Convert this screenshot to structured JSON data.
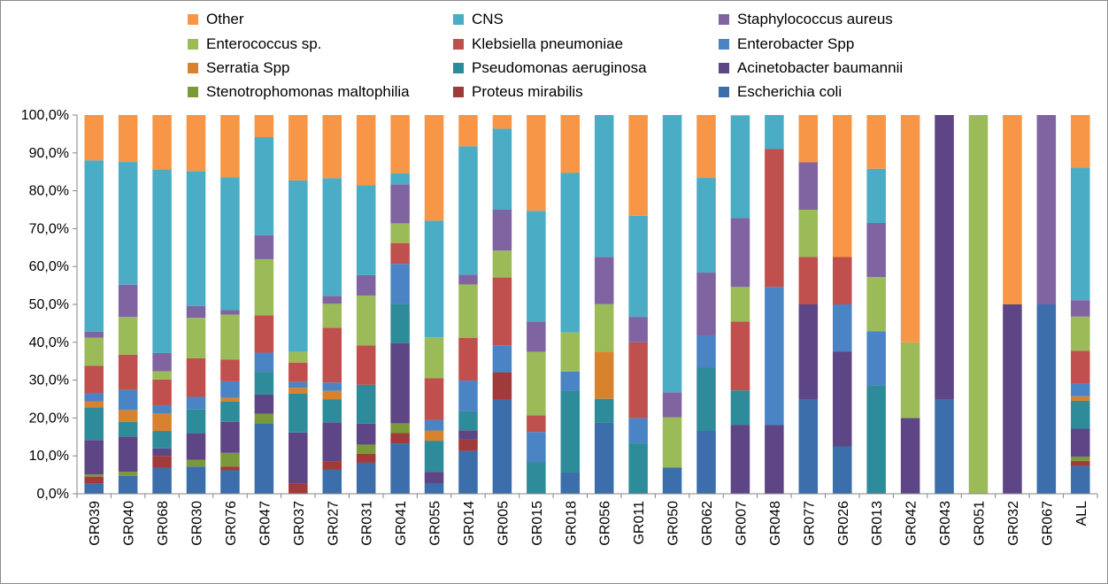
{
  "chart_data": {
    "type": "bar",
    "stacked": true,
    "percent": true,
    "title": "",
    "xlabel": "",
    "ylabel": "",
    "ylim": [
      0,
      100
    ],
    "yticks": [
      "0,0%",
      "10,0%",
      "20,0%",
      "30,0%",
      "40,0%",
      "50,0%",
      "60,0%",
      "70,0%",
      "80,0%",
      "90,0%",
      "100,0%"
    ],
    "grid": false,
    "legend_position": "top",
    "categories": [
      "GR039",
      "GR040",
      "GR068",
      "GR030",
      "GR076",
      "GR047",
      "GR037",
      "GR027",
      "GR031",
      "GR041",
      "GR055",
      "GR014",
      "GR005",
      "GR015",
      "GR018",
      "GR056",
      "GR011",
      "GR050",
      "GR062",
      "GR007",
      "GR048",
      "GR077",
      "GR026",
      "GR013",
      "GR042",
      "GR043",
      "GR051",
      "GR032",
      "GR067",
      "ALL"
    ],
    "series": [
      {
        "name": "Escherichia coli",
        "color": "#3B6EAA",
        "values": [
          2.7,
          4.7,
          6.8,
          7.2,
          6.2,
          18.5,
          0,
          6.3,
          8.2,
          13.3,
          2.8,
          11.8,
          25,
          0,
          5.6,
          18.8,
          0,
          6.9,
          16.7,
          0,
          0,
          25,
          12.5,
          0,
          0,
          25,
          0,
          0,
          50,
          7.3
        ]
      },
      {
        "name": "Proteus mirabilis",
        "color": "#A13A3A",
        "values": [
          1.8,
          0,
          3.2,
          0,
          1,
          0,
          2.7,
          2.3,
          2.4,
          2.7,
          0,
          3.1,
          7.1,
          0,
          0,
          0,
          0,
          0,
          0,
          0,
          0,
          0,
          0,
          0,
          0,
          0,
          0,
          0,
          0,
          1.3
        ]
      },
      {
        "name": "Stenotrophomonas maltophilia",
        "color": "#7A9A3A",
        "values": [
          0.6,
          1.1,
          0,
          1.8,
          3.6,
          2.5,
          0,
          0,
          2.4,
          2.6,
          0,
          0,
          0,
          0,
          0,
          0,
          0,
          0,
          0,
          0,
          0,
          0,
          0,
          0,
          0,
          0,
          0,
          0,
          0,
          1.1
        ]
      },
      {
        "name": "Acinetobacter baumannii",
        "color": "#5E4585",
        "values": [
          9,
          9.3,
          2,
          7,
          8.2,
          5,
          13.4,
          10.2,
          5.5,
          21.2,
          3,
          2.6,
          0,
          0,
          0,
          0,
          0,
          0,
          0,
          18.2,
          18.2,
          25,
          25,
          0,
          20,
          75,
          0,
          50,
          0,
          7.3
        ]
      },
      {
        "name": "Pseudomonas aeruginosa",
        "color": "#2E8C9A",
        "values": [
          8.6,
          3.9,
          4.6,
          6.3,
          5.3,
          6,
          10.2,
          6.1,
          10.3,
          10.3,
          8.2,
          5.2,
          0,
          8.4,
          21.6,
          6.3,
          13.3,
          0,
          16.7,
          9.1,
          0,
          0,
          0,
          28.6,
          0,
          0,
          0,
          0,
          0,
          7.3
        ]
      },
      {
        "name": "Serratia Spp",
        "color": "#D8822E",
        "values": [
          1.6,
          3.1,
          4.6,
          0,
          1,
          0,
          1.6,
          2.2,
          0,
          0,
          2.7,
          0,
          0,
          0,
          0,
          12.5,
          0,
          0,
          0,
          0,
          0,
          0,
          0,
          0,
          0,
          0,
          0,
          0,
          0,
          1.2
        ]
      },
      {
        "name": "Enterobacter Spp",
        "color": "#4A84C4",
        "values": [
          2.2,
          5.3,
          2.2,
          3.3,
          4.4,
          5,
          1.5,
          2.2,
          0,
          10.6,
          2.8,
          8.5,
          7.1,
          7.9,
          5.1,
          0,
          6.7,
          0,
          8.3,
          0,
          36.4,
          0,
          12.5,
          14.3,
          0,
          0,
          0,
          0,
          0,
          3.4
        ]
      },
      {
        "name": "Klebsiella pneumoniae",
        "color": "#C0504D",
        "values": [
          7.1,
          9.3,
          6.8,
          10.2,
          5.7,
          9.8,
          5.1,
          14.4,
          10.4,
          5.5,
          11,
          11.8,
          17.9,
          4.4,
          0,
          0,
          20,
          0,
          0,
          18.2,
          36.4,
          12.5,
          12.5,
          0,
          0,
          0,
          0,
          0,
          0,
          8.5
        ]
      },
      {
        "name": "Enterococcus sp.",
        "color": "#9BBB59",
        "values": [
          7.4,
          10,
          2.2,
          10.7,
          11.9,
          14.7,
          2.8,
          6.3,
          13.2,
          5.2,
          10.8,
          14.7,
          7.1,
          16.8,
          10.3,
          12.5,
          0,
          13.3,
          0,
          9.1,
          0,
          12.5,
          0,
          14.3,
          20,
          0,
          100,
          0,
          0,
          8.9
        ]
      },
      {
        "name": "Staphylococcus aureus",
        "color": "#8064A2",
        "values": [
          1.6,
          8.5,
          4.8,
          3.1,
          1.2,
          6.3,
          0,
          2.1,
          5.4,
          10.3,
          0,
          2.7,
          10.8,
          8,
          0,
          12.5,
          6.7,
          6.6,
          16.7,
          18.2,
          0,
          12.5,
          0,
          14.3,
          0,
          0,
          0,
          0,
          50,
          4.3
        ]
      },
      {
        "name": "CNS",
        "color": "#4BACC6",
        "values": [
          45,
          32.4,
          48.5,
          35.7,
          35.1,
          25.7,
          45.1,
          31,
          23.7,
          2.9,
          30.8,
          35.4,
          21.4,
          29.2,
          42.1,
          37.5,
          26.7,
          73.2,
          25,
          27,
          9,
          0,
          0,
          14.3,
          0,
          0,
          0,
          0,
          0,
          34.7
        ]
      },
      {
        "name": "Other",
        "color": "#F79646",
        "values": [
          11.9,
          12.4,
          14.4,
          14.8,
          16.4,
          5.8,
          17.2,
          16.6,
          18.6,
          15.4,
          27.9,
          8.6,
          3.6,
          25.3,
          15.3,
          0,
          26.6,
          0,
          16.6,
          0.2,
          0,
          12.5,
          37.5,
          14.2,
          60,
          0,
          0,
          50,
          0,
          13.7
        ]
      }
    ]
  },
  "legend": [
    {
      "label": "Other",
      "color": "#F79646"
    },
    {
      "label": "CNS",
      "color": "#4BACC6"
    },
    {
      "label": "Staphylococcus aureus",
      "color": "#8064A2"
    },
    {
      "label": "Enterococcus sp.",
      "color": "#9BBB59"
    },
    {
      "label": "Klebsiella pneumoniae",
      "color": "#C0504D"
    },
    {
      "label": "Enterobacter Spp",
      "color": "#4A84C4"
    },
    {
      "label": "Serratia Spp",
      "color": "#D8822E"
    },
    {
      "label": "Pseudomonas aeruginosa",
      "color": "#2E8C9A"
    },
    {
      "label": "Acinetobacter baumannii",
      "color": "#5E4585"
    },
    {
      "label": "Stenotrophomonas maltophilia",
      "color": "#7A9A3A"
    },
    {
      "label": "Proteus mirabilis",
      "color": "#A13A3A"
    },
    {
      "label": "Escherichia coli",
      "color": "#3B6EAA"
    }
  ]
}
